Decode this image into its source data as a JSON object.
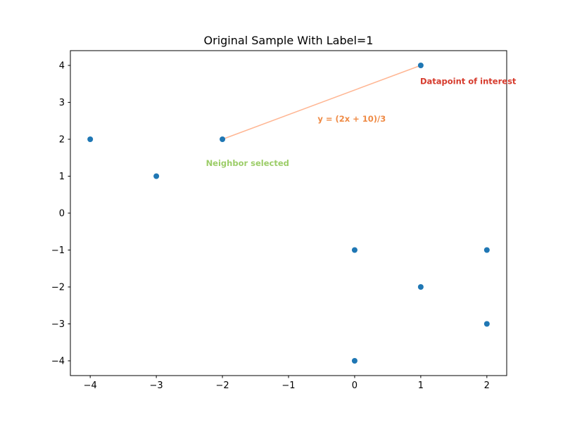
{
  "figure": {
    "background": "#ffffff"
  },
  "chart_data": {
    "type": "scatter",
    "title": "Original Sample With Label=1",
    "xlabel": "",
    "ylabel": "",
    "xlim": [
      -4.3,
      2.3
    ],
    "ylim": [
      -4.4,
      4.4
    ],
    "xticks": [
      -4,
      -3,
      -2,
      -1,
      0,
      1,
      2
    ],
    "yticks": [
      -4,
      -3,
      -2,
      -1,
      0,
      1,
      2,
      3,
      4
    ],
    "grid": false,
    "legend": "none",
    "point_color": "#1f77b4",
    "series": [
      {
        "name": "interpolation-line",
        "type": "line",
        "color": "#ffb693",
        "points": [
          [
            -2,
            2
          ],
          [
            1,
            4
          ]
        ]
      },
      {
        "name": "sample-points",
        "type": "scatter",
        "color": "#1f77b4",
        "points": [
          [
            -4,
            2
          ],
          [
            -3,
            1
          ],
          [
            -2,
            2
          ],
          [
            1,
            4
          ],
          [
            0,
            -1
          ],
          [
            2,
            -1
          ],
          [
            1,
            -2
          ],
          [
            2,
            -3
          ],
          [
            0,
            -4
          ]
        ]
      }
    ],
    "annotations": [
      {
        "name": "line-equation",
        "text": "y = (2x + 10)/3",
        "x": -0.56,
        "y": 2.48,
        "color": "#ef8b46",
        "anchor": "start"
      },
      {
        "name": "datapoint-of-interest",
        "text": "Datapoint of interest",
        "x": 0.99,
        "y": 3.5,
        "color": "#d63a2c",
        "anchor": "start"
      },
      {
        "name": "neighbor-selected",
        "text": "Neighbor selected",
        "x": -2.25,
        "y": 1.28,
        "color": "#9ccd68",
        "anchor": "start"
      }
    ]
  }
}
